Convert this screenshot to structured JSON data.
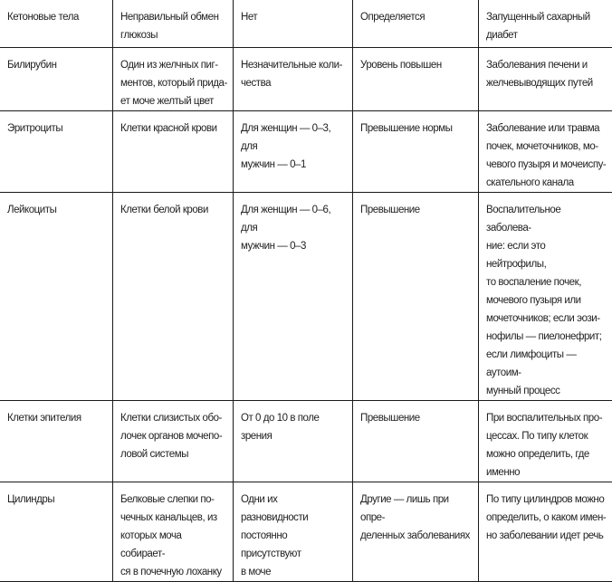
{
  "rows": [
    [
      "Кетоновые тела",
      "Неправильный обмен\nглюкозы",
      "Нет",
      "Определяется",
      "Запущенный сахарный\nдиабет"
    ],
    [
      "Билирубин",
      "Один из желчных пиг-\nментов, который прида-\nет моче желтый цвет",
      "Незначительные коли-\nчества",
      "Уровень повышен",
      "Заболевания печени и\nжелчевыводящих путей"
    ],
    [
      "Эритроциты",
      "Клетки красной крови",
      "Для женщин — 0–3, для\nмужчин — 0–1",
      "Превышение нормы",
      "Заболевание или травма\nпочек, мочеточников, мо-\nчевого пузыря и мочеиспу-\nскательного канала"
    ],
    [
      "Лейкоциты",
      "Клетки белой крови",
      "Для женщин — 0–6, для\nмужчин — 0–3",
      "Превышение",
      "Воспалительное заболева-\nние: если это нейтрофилы,\nто воспаление почек,\nмочевого пузыря или\nмочеточников; если эози-\nнофилы — пиелонефрит;\nесли лимфоциты — аутоим-\nмунный процесс"
    ],
    [
      "Клетки эпителия",
      "Клетки слизистых обо-\nлочек органов мочепо-\nловой системы",
      "От 0 до 10 в поле\nзрения",
      "Превышение",
      "При воспалительных про-\nцессах. По типу клеток\nможно определить, где\nименно"
    ],
    [
      "Цилиндры",
      "Белковые слепки по-\nчечных канальцев, из\nкоторых моча собирает-\nся в почечную лоханку",
      "Одни их разновидности\nпостоянно присутствуют\nв моче",
      "Другие — лишь при опре-\nделенных заболеваниях",
      "По типу цилиндров можно\nопределить, о каком имен-\nно заболевании идет речь"
    ]
  ]
}
